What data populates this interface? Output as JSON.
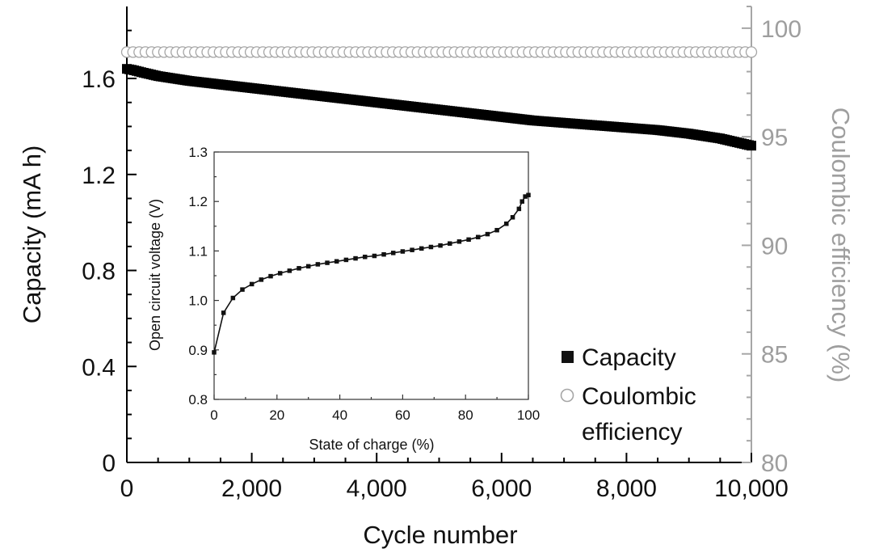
{
  "chart_data": [
    {
      "type": "scatter",
      "xlabel": "Cycle number",
      "ylabel": "Capacity (mA h)",
      "y2label": "Coulombic efficiency (%)",
      "xlim": [
        0,
        10000
      ],
      "ylim": [
        0,
        1.9
      ],
      "y2lim": [
        80,
        101
      ],
      "x_ticks": [
        "0",
        "2,000",
        "4,000",
        "6,000",
        "8,000",
        "10,000"
      ],
      "x_tick_values": [
        0,
        2000,
        4000,
        6000,
        8000,
        10000
      ],
      "y_ticks": [
        "0",
        "0.4",
        "0.8",
        "1.2",
        "1.6"
      ],
      "y_tick_values": [
        0,
        0.4,
        0.8,
        1.2,
        1.6
      ],
      "y2_ticks": [
        "80",
        "85",
        "90",
        "95",
        "100"
      ],
      "y2_tick_values": [
        80,
        85,
        90,
        95,
        100
      ],
      "legend_position": "bottom-right",
      "series": [
        {
          "name": "Capacity",
          "axis": "left",
          "marker": "filled-square",
          "color": "#000000",
          "x": [
            0,
            100,
            250,
            500,
            750,
            1000,
            1500,
            2000,
            2500,
            3000,
            3500,
            4000,
            4500,
            5000,
            5500,
            6000,
            6500,
            7000,
            7500,
            8000,
            8500,
            9000,
            9500,
            10000
          ],
          "y": [
            1.64,
            1.635,
            1.625,
            1.61,
            1.6,
            1.59,
            1.575,
            1.56,
            1.545,
            1.53,
            1.515,
            1.5,
            1.485,
            1.47,
            1.455,
            1.44,
            1.425,
            1.415,
            1.405,
            1.395,
            1.385,
            1.37,
            1.35,
            1.32
          ]
        },
        {
          "name": "Coulombic efficiency",
          "axis": "right",
          "marker": "open-circle",
          "color": "#a6a6a6",
          "x": [
            0,
            10000
          ],
          "y": [
            98.9,
            98.9
          ]
        }
      ]
    },
    {
      "type": "line",
      "xlabel": "State of charge (%)",
      "ylabel": "Open circuit voltage (V)",
      "xlim": [
        0,
        100
      ],
      "ylim": [
        0.8,
        1.3
      ],
      "x_ticks": [
        "0",
        "20",
        "40",
        "60",
        "80",
        "100"
      ],
      "x_tick_values": [
        0,
        20,
        40,
        60,
        80,
        100
      ],
      "y_ticks": [
        "0.8",
        "0.9",
        "1.0",
        "1.1",
        "1.2",
        "1.3"
      ],
      "y_tick_values": [
        0.8,
        0.9,
        1.0,
        1.1,
        1.2,
        1.3
      ],
      "series": [
        {
          "marker": "filled-square",
          "color": "#111111",
          "x": [
            0,
            3,
            6,
            9,
            12,
            15,
            18,
            21,
            24,
            27,
            30,
            33,
            36,
            39,
            42,
            45,
            48,
            51,
            54,
            57,
            60,
            63,
            66,
            69,
            72,
            75,
            78,
            81,
            84,
            87,
            90,
            93,
            95,
            97,
            98,
            99,
            100
          ],
          "y": [
            0.895,
            0.975,
            1.005,
            1.022,
            1.033,
            1.042,
            1.049,
            1.055,
            1.06,
            1.065,
            1.069,
            1.073,
            1.076,
            1.079,
            1.082,
            1.085,
            1.088,
            1.09,
            1.093,
            1.096,
            1.099,
            1.102,
            1.105,
            1.108,
            1.111,
            1.115,
            1.119,
            1.123,
            1.128,
            1.134,
            1.142,
            1.155,
            1.168,
            1.185,
            1.2,
            1.21,
            1.213
          ]
        }
      ]
    }
  ],
  "legend": {
    "capacity": "Capacity",
    "coulombic": "Coulombic",
    "efficiency": "efficiency"
  }
}
